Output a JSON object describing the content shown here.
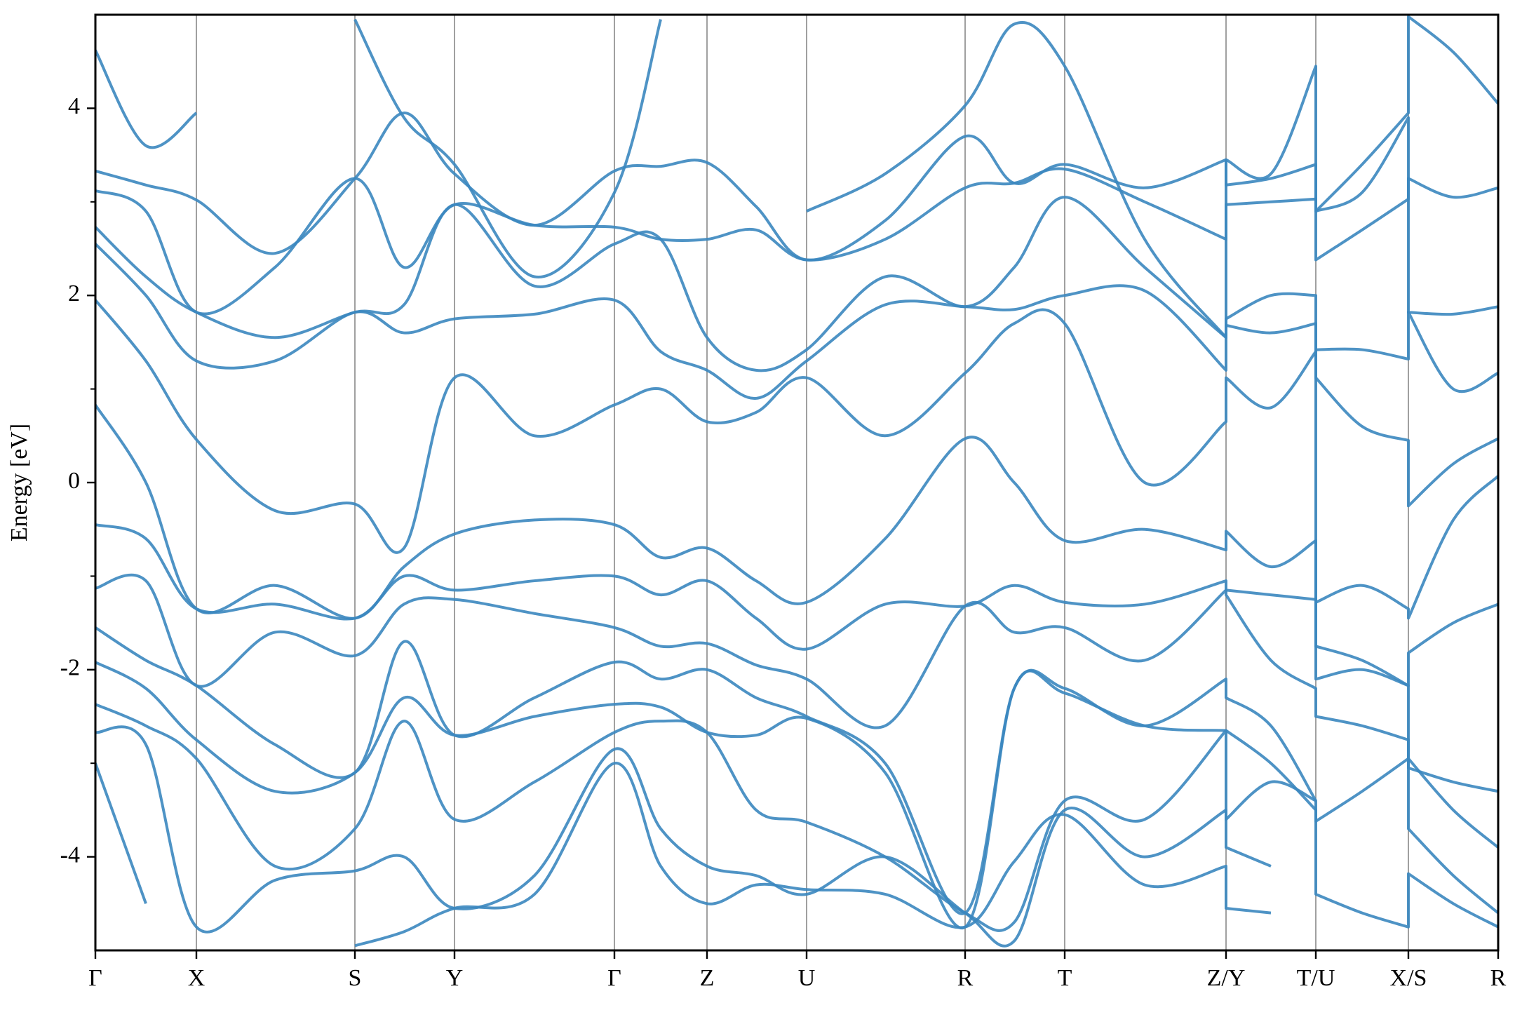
{
  "chart_data": {
    "type": "line",
    "y_label": "Energy [eV]",
    "color": "#3b87bf",
    "ylim": [
      -5,
      5
    ],
    "yticks": [
      -4,
      -2,
      0,
      2,
      4
    ],
    "yticks_minor": [
      -3,
      -1,
      1,
      3
    ],
    "xlim": [
      0,
      1.0
    ],
    "xticks": [
      {
        "value": 0,
        "label": "Γ"
      },
      {
        "value": 0.072,
        "label": "X"
      },
      {
        "value": 0.185,
        "label": "S"
      },
      {
        "value": 0.256,
        "label": "Y"
      },
      {
        "value": 0.37,
        "label": "Γ"
      },
      {
        "value": 0.436,
        "label": "Z"
      },
      {
        "value": 0.507,
        "label": "U"
      },
      {
        "value": 0.62,
        "label": "R"
      },
      {
        "value": 0.691,
        "label": "T"
      },
      {
        "value": 0.806,
        "label": "Z/Y"
      },
      {
        "value": 0.87,
        "label": "T/U"
      },
      {
        "value": 0.936,
        "label": "X/S"
      },
      {
        "value": 1.0,
        "label": "R"
      }
    ],
    "grid": true,
    "x": [
      0,
      0.036,
      0.072,
      0.128,
      0.185,
      0.22,
      0.256,
      0.313,
      0.37,
      0.403,
      0.436,
      0.471,
      0.507,
      0.563,
      0.62,
      0.655,
      0.691,
      0.748,
      0.806,
      0.806,
      0.838,
      0.87,
      0.87,
      0.903,
      0.936,
      0.936,
      0.968,
      1.0
    ],
    "series": [
      {
        "values": [
          4.62,
          3.6,
          3.95,
          null,
          4.95,
          3.9,
          3.4,
          2.2,
          3.1,
          4.95,
          null,
          null,
          2.9,
          3.3,
          4.03,
          4.9,
          4.45,
          2.6,
          1.55,
          3.45,
          3.3,
          4.45,
          2.9,
          3.4,
          3.95,
          4.98,
          4.6,
          4.05
        ]
      },
      {
        "values": [
          3.33,
          3.18,
          3.02,
          2.45,
          3.25,
          3.95,
          3.3,
          2.75,
          3.33,
          3.38,
          3.42,
          2.95,
          2.38,
          2.8,
          3.7,
          3.2,
          3.4,
          3.15,
          3.45,
          3.18,
          3.25,
          3.4,
          2.38,
          2.7,
          3.03,
          3.25,
          3.05,
          3.15
        ]
      },
      {
        "values": [
          3.12,
          2.9,
          1.82,
          2.3,
          3.25,
          2.3,
          2.97,
          2.75,
          2.73,
          2.6,
          2.6,
          2.7,
          2.38,
          2.6,
          3.15,
          3.2,
          3.35,
          3.0,
          2.6,
          2.97,
          3.0,
          3.03,
          2.9,
          3.1,
          3.9,
          1.82,
          1.8,
          1.88
        ]
      },
      {
        "values": [
          2.73,
          2.2,
          1.82,
          1.55,
          1.82,
          1.9,
          2.97,
          2.1,
          2.55,
          2.6,
          1.55,
          1.2,
          1.42,
          2.2,
          1.88,
          2.3,
          3.05,
          2.3,
          1.55,
          1.75,
          2.0,
          2.0,
          1.42,
          1.42,
          1.32,
          1.82,
          1.0,
          1.17
        ]
      },
      {
        "values": [
          2.55,
          2.0,
          1.3,
          1.3,
          1.82,
          1.6,
          1.75,
          1.8,
          1.95,
          1.4,
          1.2,
          0.9,
          1.3,
          1.9,
          1.88,
          1.85,
          2.0,
          2.05,
          1.2,
          1.68,
          1.6,
          1.7,
          1.12,
          0.6,
          0.45,
          -0.25,
          0.2,
          0.47
        ]
      },
      {
        "values": [
          1.95,
          1.3,
          0.46,
          -0.3,
          -0.23,
          -0.7,
          1.12,
          0.5,
          0.83,
          1.0,
          0.65,
          0.75,
          1.12,
          0.5,
          1.17,
          1.7,
          1.7,
          0.0,
          0.65,
          1.12,
          0.8,
          1.4,
          -1.28,
          -1.1,
          -1.35,
          -1.45,
          -0.4,
          0.07
        ]
      },
      {
        "values": [
          0.83,
          0.0,
          -1.35,
          -1.1,
          -1.45,
          -0.9,
          -0.55,
          -0.4,
          -0.45,
          -0.8,
          -0.7,
          -1.05,
          -1.28,
          -0.6,
          0.47,
          0.0,
          -0.62,
          -0.5,
          -0.72,
          -0.52,
          -0.9,
          -0.62,
          -1.75,
          -1.9,
          -2.17,
          -1.82,
          -1.5,
          -1.3
        ]
      },
      {
        "values": [
          -0.45,
          -0.6,
          -1.35,
          -1.3,
          -1.45,
          -1.0,
          -1.15,
          -1.05,
          -1.0,
          -1.2,
          -1.05,
          -1.45,
          -1.78,
          -1.3,
          -1.32,
          -1.1,
          -1.28,
          -1.3,
          -1.05,
          -1.15,
          -1.2,
          -1.25,
          -2.1,
          -2.0,
          -2.17,
          -3.05,
          -3.2,
          -3.3
        ]
      },
      {
        "values": [
          -1.13,
          -1.05,
          -2.17,
          -1.6,
          -1.85,
          -1.3,
          -1.25,
          -1.4,
          -1.55,
          -1.75,
          -1.72,
          -1.95,
          -2.1,
          -2.6,
          -1.32,
          -1.6,
          -1.55,
          -1.9,
          -1.15,
          -1.2,
          -1.9,
          -2.2,
          -2.5,
          -2.6,
          -2.75,
          -2.95,
          -3.5,
          -3.9
        ]
      },
      {
        "values": [
          -1.55,
          -1.9,
          -2.17,
          -2.8,
          -3.1,
          -1.7,
          -2.7,
          -2.3,
          -1.92,
          -2.1,
          -2.0,
          -2.3,
          -2.5,
          -3.0,
          -4.6,
          -2.2,
          -2.2,
          -2.6,
          -2.1,
          -2.3,
          -2.6,
          -3.4,
          -3.62,
          -3.3,
          -2.95,
          -3.7,
          -4.2,
          -4.6
        ]
      },
      {
        "values": [
          -1.92,
          -2.2,
          -2.75,
          -3.3,
          -3.1,
          -2.3,
          -2.7,
          -2.5,
          -2.37,
          -2.4,
          -2.67,
          -2.7,
          -2.52,
          -3.1,
          -4.75,
          -2.2,
          -2.25,
          -2.6,
          -2.65,
          -2.65,
          -3.0,
          -3.5,
          -4.4,
          -4.6,
          -4.75,
          -4.18,
          -4.5,
          -4.75
        ]
      },
      {
        "values": [
          -2.37,
          -2.6,
          -2.95,
          -4.1,
          -3.7,
          -2.55,
          -3.6,
          -3.2,
          -2.67,
          -2.55,
          -2.67,
          -3.5,
          -3.63,
          -4.0,
          -4.6,
          -4.7,
          -3.4,
          -3.6,
          -2.65,
          -3.6,
          -3.2,
          -3.4,
          null,
          null,
          null,
          null,
          null,
          null
        ]
      },
      {
        "values": [
          -2.67,
          -2.8,
          -4.75,
          -4.25,
          -4.15,
          -4.0,
          -4.55,
          -4.2,
          -2.85,
          -3.7,
          -4.1,
          -4.2,
          -4.4,
          -4.0,
          -4.6,
          -4.9,
          -3.5,
          -4.0,
          -3.5,
          -3.9,
          -4.1,
          null,
          null,
          null,
          null,
          null,
          null,
          null
        ]
      },
      {
        "values": [
          -3.0,
          -4.5,
          null,
          null,
          -4.95,
          -4.8,
          -4.55,
          -4.4,
          -3.0,
          -4.1,
          -4.5,
          -4.3,
          -4.35,
          -4.4,
          -4.75,
          -4.05,
          -3.55,
          -4.3,
          -4.1,
          -4.55,
          -4.6,
          null,
          null,
          null,
          null,
          null,
          null,
          null
        ]
      }
    ]
  }
}
